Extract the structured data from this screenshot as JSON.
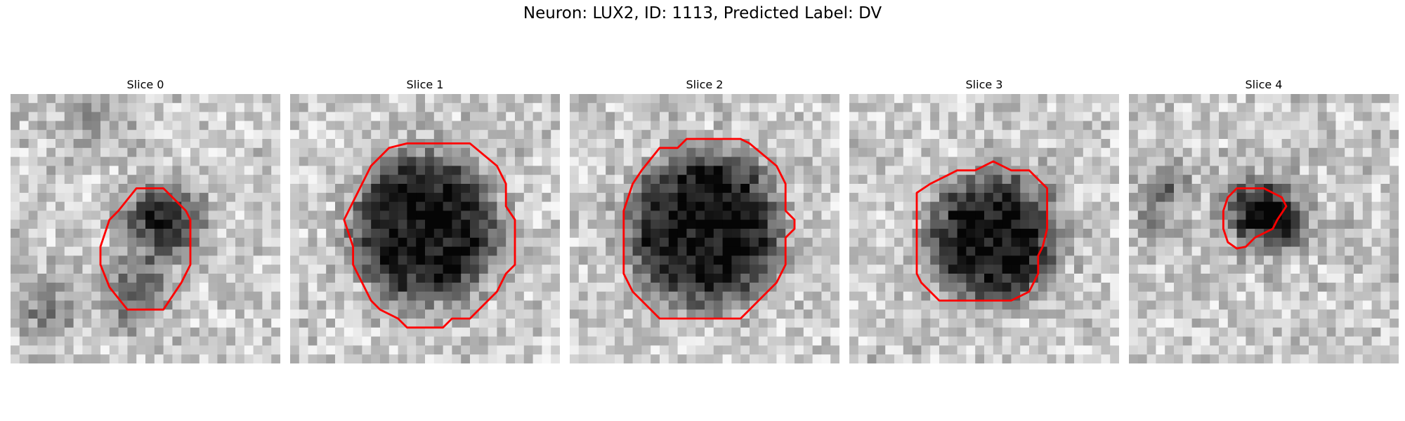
{
  "figure": {
    "title": "Neuron: LUX2, ID: 1113, Predicted Label: DV",
    "contour_color": "#ff0000",
    "colormap": "gray",
    "image_grid": 30,
    "panels": [
      {
        "title": "Slice 0",
        "seed": 11,
        "blobs": [
          [
            17,
            14,
            3.4,
            0.95
          ],
          [
            14,
            22,
            3.0,
            0.55
          ],
          [
            4,
            24,
            2.5,
            0.45
          ],
          [
            9,
            3,
            2.0,
            0.4
          ]
        ],
        "contour": [
          [
            14,
            10.5
          ],
          [
            17,
            10.5
          ],
          [
            19.5,
            13
          ],
          [
            20,
            14
          ],
          [
            20,
            19
          ],
          [
            19,
            21
          ],
          [
            17,
            24
          ],
          [
            13,
            24
          ],
          [
            11,
            21.5
          ],
          [
            10,
            19
          ],
          [
            10,
            17
          ],
          [
            11,
            14
          ],
          [
            12,
            13
          ]
        ]
      },
      {
        "title": "Slice 1",
        "seed": 23,
        "blobs": [
          [
            15,
            15,
            7.8,
            0.95
          ]
        ],
        "contour": [
          [
            13,
            5.5
          ],
          [
            20,
            5.5
          ],
          [
            23,
            8
          ],
          [
            24,
            10
          ],
          [
            24,
            12.5
          ],
          [
            25,
            14
          ],
          [
            25,
            19
          ],
          [
            24,
            20
          ],
          [
            23,
            22
          ],
          [
            22,
            23
          ],
          [
            20,
            25
          ],
          [
            18,
            25
          ],
          [
            17,
            26
          ],
          [
            13,
            26
          ],
          [
            12,
            25
          ],
          [
            10,
            24
          ],
          [
            9,
            23
          ],
          [
            8,
            21
          ],
          [
            7,
            19
          ],
          [
            7,
            17
          ],
          [
            6,
            14
          ],
          [
            7,
            12
          ],
          [
            8,
            10
          ],
          [
            9,
            8
          ],
          [
            10,
            7
          ],
          [
            11,
            6
          ]
        ]
      },
      {
        "title": "Slice 2",
        "seed": 37,
        "blobs": [
          [
            15,
            15,
            8.2,
            0.95
          ]
        ],
        "contour": [
          [
            13,
            5
          ],
          [
            19,
            5
          ],
          [
            20,
            5.5
          ],
          [
            23,
            8
          ],
          [
            24,
            10
          ],
          [
            24,
            13
          ],
          [
            25,
            14
          ],
          [
            25,
            15
          ],
          [
            24,
            16
          ],
          [
            24,
            19
          ],
          [
            23,
            21
          ],
          [
            21,
            23
          ],
          [
            20,
            24
          ],
          [
            19,
            25
          ],
          [
            18,
            25
          ],
          [
            17,
            25
          ],
          [
            13,
            25
          ],
          [
            10,
            25
          ],
          [
            8,
            23
          ],
          [
            7,
            22
          ],
          [
            6,
            20
          ],
          [
            6,
            16
          ],
          [
            6,
            13
          ],
          [
            7,
            10
          ],
          [
            8,
            8.5
          ],
          [
            10,
            6
          ],
          [
            12,
            6
          ]
        ]
      },
      {
        "title": "Slice 3",
        "seed": 51,
        "blobs": [
          [
            16,
            16,
            6.8,
            0.95
          ]
        ],
        "contour": [
          [
            9,
            10
          ],
          [
            10,
            9.5
          ],
          [
            11,
            9
          ],
          [
            12,
            8.5
          ],
          [
            14,
            8.5
          ],
          [
            15,
            8
          ],
          [
            16,
            7.5
          ],
          [
            17,
            8
          ],
          [
            18,
            8.5
          ],
          [
            20,
            8.5
          ],
          [
            21,
            9.5
          ],
          [
            22,
            10.5
          ],
          [
            22,
            12
          ],
          [
            22,
            15
          ],
          [
            21.5,
            17
          ],
          [
            21,
            18
          ],
          [
            21,
            20
          ],
          [
            20,
            22
          ],
          [
            18,
            23
          ],
          [
            17,
            23
          ],
          [
            10,
            23
          ],
          [
            8,
            21
          ],
          [
            7.5,
            20
          ],
          [
            7.5,
            11
          ]
        ]
      },
      {
        "title": "Slice 4",
        "seed": 67,
        "blobs": [
          [
            14,
            13,
            2.6,
            0.95
          ],
          [
            17,
            14,
            2.6,
            0.7
          ],
          [
            4,
            10,
            1.6,
            0.6
          ],
          [
            3,
            14,
            1.6,
            0.4
          ]
        ],
        "contour": [
          [
            12,
            10.5
          ],
          [
            13,
            10.5
          ],
          [
            15,
            10.5
          ],
          [
            17,
            11.5
          ],
          [
            17.5,
            12.5
          ],
          [
            16.5,
            14
          ],
          [
            16,
            15
          ],
          [
            15,
            15.5
          ],
          [
            14,
            16
          ],
          [
            13,
            17
          ],
          [
            12,
            17.2
          ],
          [
            11,
            16.5
          ],
          [
            10.5,
            15
          ],
          [
            10.5,
            13
          ],
          [
            11,
            11.5
          ]
        ]
      }
    ]
  }
}
